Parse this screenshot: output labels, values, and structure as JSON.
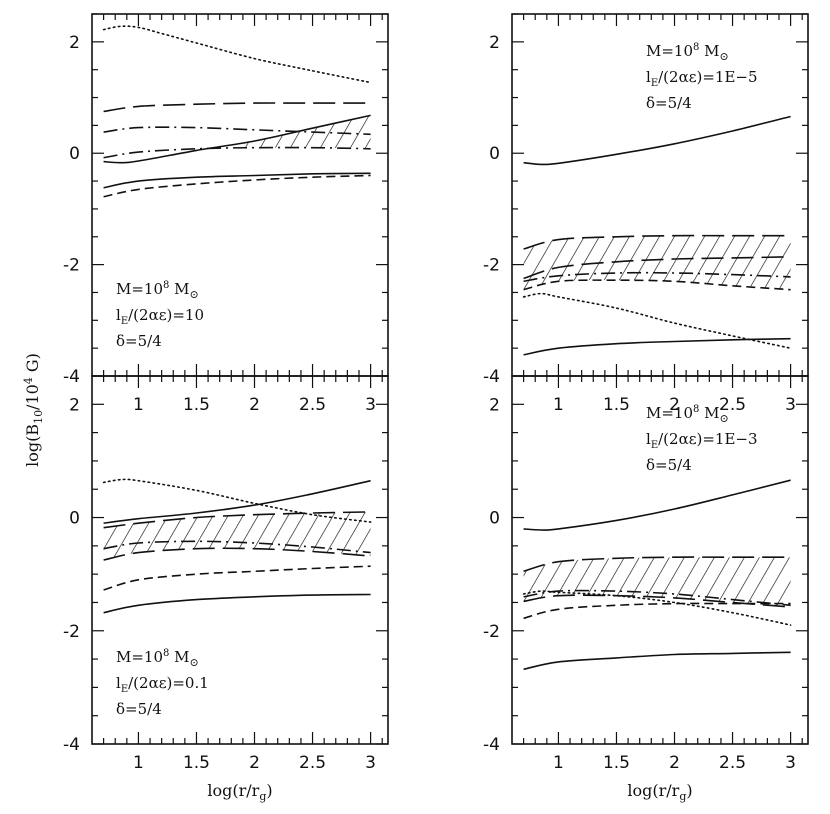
{
  "figure": {
    "ylabel_text": "log(B",
    "ylabel_sub": "10",
    "ylabel_tail": "/10",
    "ylabel_sup": "4",
    "ylabel_end": " G)",
    "xlabel_text": "log(r/r",
    "xlabel_sub": "g",
    "xlabel_end": ")"
  },
  "chart_data": [
    {
      "id": "panel-top-left",
      "type": "line",
      "xlim": [
        0.6,
        3.15
      ],
      "ylim": [
        -4,
        2.5
      ],
      "xticks": [],
      "xtick_labels": [],
      "yticks": [
        2,
        0,
        -2,
        -4
      ],
      "ytick_labels": [
        "2",
        "0",
        "-2",
        "-4"
      ],
      "annotation": [
        "M=10",
        "8",
        " M",
        "⊙",
        "l",
        "E",
        "/(2αε)=10",
        "δ=5/4"
      ],
      "annotation_position": "lower-left",
      "series": [
        {
          "name": "dotted",
          "style": "dotted",
          "x": [
            0.7,
            0.85,
            1.0,
            1.2,
            1.5,
            2.0,
            2.5,
            3.0
          ],
          "y": [
            2.22,
            2.28,
            2.26,
            2.15,
            1.98,
            1.7,
            1.48,
            1.27
          ]
        },
        {
          "name": "long-dash",
          "style": "longdash",
          "x": [
            0.7,
            1.0,
            1.5,
            2.0,
            2.5,
            3.0
          ],
          "y": [
            0.75,
            0.84,
            0.88,
            0.9,
            0.9,
            0.9
          ]
        },
        {
          "name": "dash-dot-upper",
          "style": "dashdot",
          "x": [
            0.7,
            1.0,
            1.5,
            2.0,
            2.5,
            3.0
          ],
          "y": [
            0.38,
            0.46,
            0.46,
            0.42,
            0.38,
            0.34
          ]
        },
        {
          "name": "dash-dot-lower",
          "style": "dashdot",
          "x": [
            0.7,
            1.0,
            1.5,
            2.0,
            2.5,
            3.0
          ],
          "y": [
            -0.08,
            0.02,
            0.08,
            0.1,
            0.1,
            0.08
          ]
        },
        {
          "name": "solid-rising",
          "style": "solid",
          "x": [
            0.7,
            0.85,
            1.0,
            1.5,
            2.0,
            2.5,
            3.0
          ],
          "y": [
            -0.15,
            -0.17,
            -0.14,
            0.05,
            0.22,
            0.45,
            0.68
          ]
        },
        {
          "name": "solid-low",
          "style": "solid",
          "x": [
            0.7,
            1.0,
            1.5,
            2.0,
            2.5,
            3.0
          ],
          "y": [
            -0.62,
            -0.5,
            -0.43,
            -0.4,
            -0.37,
            -0.36
          ]
        },
        {
          "name": "short-dash",
          "style": "shortdash",
          "x": [
            0.7,
            1.0,
            1.5,
            2.0,
            2.5,
            3.0
          ],
          "y": [
            -0.78,
            -0.65,
            -0.55,
            -0.48,
            -0.43,
            -0.4
          ]
        }
      ],
      "hatch": {
        "x": [
          1.85,
          2.0,
          2.5,
          3.0
        ],
        "upper": [
          0.18,
          0.22,
          0.45,
          0.68
        ],
        "lower": [
          0.12,
          0.1,
          0.1,
          0.08
        ]
      }
    },
    {
      "id": "panel-top-right",
      "type": "line",
      "xlim": [
        0.6,
        3.15
      ],
      "ylim": [
        -4,
        2.5
      ],
      "xticks": [],
      "xtick_labels": [],
      "yticks": [
        2,
        0,
        -2,
        -4
      ],
      "ytick_labels": [
        "2",
        "0",
        "-2",
        "-4"
      ],
      "annotation": [
        "M=10",
        "8",
        " M",
        "⊙",
        "l",
        "E",
        "/(2αε)=1E−5",
        "δ=5/4"
      ],
      "annotation_position": "upper-right",
      "series": [
        {
          "name": "solid-upper",
          "style": "solid",
          "x": [
            0.7,
            0.85,
            1.0,
            1.5,
            2.0,
            2.5,
            3.0
          ],
          "y": [
            -0.17,
            -0.2,
            -0.18,
            -0.02,
            0.17,
            0.4,
            0.66
          ]
        },
        {
          "name": "long-dash-top",
          "style": "longdash",
          "x": [
            0.7,
            1.0,
            1.5,
            2.0,
            2.5,
            3.0
          ],
          "y": [
            -1.72,
            -1.55,
            -1.5,
            -1.48,
            -1.48,
            -1.48
          ]
        },
        {
          "name": "long-dash-mid",
          "style": "longdash",
          "x": [
            0.7,
            1.0,
            1.5,
            2.0,
            2.5,
            3.0
          ],
          "y": [
            -2.25,
            -2.05,
            -1.95,
            -1.9,
            -1.88,
            -1.86
          ]
        },
        {
          "name": "dash-dot",
          "style": "dashdot",
          "x": [
            0.7,
            1.0,
            1.5,
            2.0,
            2.5,
            3.0
          ],
          "y": [
            -2.3,
            -2.2,
            -2.15,
            -2.15,
            -2.18,
            -2.22
          ]
        },
        {
          "name": "short-dash",
          "style": "shortdash",
          "x": [
            0.7,
            1.0,
            1.5,
            2.0,
            2.5,
            3.0
          ],
          "y": [
            -2.45,
            -2.3,
            -2.28,
            -2.3,
            -2.38,
            -2.45
          ]
        },
        {
          "name": "dotted",
          "style": "dotted",
          "x": [
            0.7,
            0.85,
            1.0,
            1.5,
            2.0,
            2.5,
            3.0
          ],
          "y": [
            -2.58,
            -2.52,
            -2.58,
            -2.78,
            -3.05,
            -3.28,
            -3.5
          ]
        },
        {
          "name": "solid-low",
          "style": "solid",
          "x": [
            0.7,
            1.0,
            1.5,
            2.0,
            2.5,
            3.0
          ],
          "y": [
            -3.62,
            -3.5,
            -3.42,
            -3.38,
            -3.35,
            -3.33
          ]
        }
      ],
      "hatch": {
        "x": [
          0.7,
          1.0,
          1.5,
          2.0,
          2.5,
          3.0
        ],
        "upper": [
          -1.72,
          -1.55,
          -1.5,
          -1.48,
          -1.48,
          -1.48
        ],
        "lower": [
          -2.45,
          -2.3,
          -2.28,
          -2.3,
          -2.38,
          -2.45
        ]
      }
    },
    {
      "id": "panel-bottom-left",
      "type": "line",
      "xlim": [
        0.6,
        3.15
      ],
      "ylim": [
        -4,
        2.5
      ],
      "xticks": [
        1,
        1.5,
        2,
        2.5,
        3
      ],
      "xtick_labels": [
        "1",
        "1.5",
        "2",
        "2.5",
        "3"
      ],
      "yticks": [
        2,
        0,
        -2,
        -4
      ],
      "ytick_labels": [
        "2",
        "0",
        "-2",
        "-4"
      ],
      "top_tick_labels": [
        "1",
        "1.5",
        "2",
        "2.5",
        "3"
      ],
      "annotation": [
        "M=10",
        "8",
        " M",
        "⊙",
        "l",
        "E",
        "/(2αε)=0.1",
        "δ=5/4"
      ],
      "annotation_position": "lower-left",
      "series": [
        {
          "name": "dotted",
          "style": "dotted",
          "x": [
            0.7,
            0.85,
            1.0,
            1.5,
            2.0,
            2.5,
            3.0
          ],
          "y": [
            0.62,
            0.67,
            0.65,
            0.48,
            0.25,
            0.05,
            -0.08
          ]
        },
        {
          "name": "solid-rising",
          "style": "solid",
          "x": [
            0.7,
            1.0,
            1.5,
            2.0,
            2.5,
            3.0
          ],
          "y": [
            -0.1,
            -0.02,
            0.08,
            0.22,
            0.42,
            0.65
          ]
        },
        {
          "name": "long-dash",
          "style": "longdash",
          "x": [
            0.7,
            1.0,
            1.5,
            2.0,
            2.5,
            3.0
          ],
          "y": [
            -0.18,
            -0.1,
            0.0,
            0.05,
            0.08,
            0.1
          ]
        },
        {
          "name": "dash-dot",
          "style": "dashdot",
          "x": [
            0.7,
            1.0,
            1.5,
            2.0,
            2.5,
            3.0
          ],
          "y": [
            -0.55,
            -0.45,
            -0.42,
            -0.45,
            -0.52,
            -0.62
          ]
        },
        {
          "name": "long-dash-lower",
          "style": "longdash",
          "x": [
            0.7,
            1.0,
            1.5,
            2.0,
            2.5,
            3.0
          ],
          "y": [
            -0.75,
            -0.62,
            -0.55,
            -0.55,
            -0.6,
            -0.68
          ]
        },
        {
          "name": "short-dash",
          "style": "shortdash",
          "x": [
            0.7,
            1.0,
            1.5,
            2.0,
            2.5,
            3.0
          ],
          "y": [
            -1.28,
            -1.1,
            -1.0,
            -0.95,
            -0.9,
            -0.86
          ]
        },
        {
          "name": "solid-low",
          "style": "solid",
          "x": [
            0.7,
            1.0,
            1.5,
            2.0,
            2.5,
            3.0
          ],
          "y": [
            -1.68,
            -1.55,
            -1.45,
            -1.4,
            -1.37,
            -1.36
          ]
        }
      ],
      "hatch": {
        "x": [
          0.7,
          1.0,
          1.5,
          2.0,
          2.5,
          3.0
        ],
        "upper": [
          -0.18,
          -0.1,
          0.0,
          0.05,
          0.08,
          0.1
        ],
        "lower": [
          -0.75,
          -0.62,
          -0.55,
          -0.55,
          -0.6,
          -0.68
        ]
      }
    },
    {
      "id": "panel-bottom-right",
      "type": "line",
      "xlim": [
        0.6,
        3.15
      ],
      "ylim": [
        -4,
        2.5
      ],
      "xticks": [
        1,
        1.5,
        2,
        2.5,
        3
      ],
      "xtick_labels": [
        "1",
        "1.5",
        "2",
        "2.5",
        "3"
      ],
      "yticks": [
        2,
        0,
        -2,
        -4
      ],
      "ytick_labels": [
        "2",
        "0",
        "-2",
        "-4"
      ],
      "top_tick_labels": [
        "1",
        "1.5",
        "2",
        "2.5",
        "3"
      ],
      "annotation": [
        "M=10",
        "8",
        " M",
        "⊙",
        "l",
        "E",
        "/(2αε)=1E−3",
        "δ=5/4"
      ],
      "annotation_position": "upper-right",
      "series": [
        {
          "name": "solid-upper",
          "style": "solid",
          "x": [
            0.7,
            0.85,
            1.0,
            1.5,
            2.0,
            2.5,
            3.0
          ],
          "y": [
            -0.2,
            -0.22,
            -0.2,
            -0.05,
            0.15,
            0.4,
            0.66
          ]
        },
        {
          "name": "long-dash-top",
          "style": "longdash",
          "x": [
            0.7,
            1.0,
            1.5,
            2.0,
            2.5,
            3.0
          ],
          "y": [
            -0.95,
            -0.78,
            -0.72,
            -0.7,
            -0.7,
            -0.7
          ]
        },
        {
          "name": "dash-dot",
          "style": "dashdot",
          "x": [
            0.7,
            1.0,
            1.5,
            2.0,
            2.5,
            3.0
          ],
          "y": [
            -1.4,
            -1.3,
            -1.3,
            -1.35,
            -1.45,
            -1.55
          ]
        },
        {
          "name": "long-dash-lower",
          "style": "longdash",
          "x": [
            0.7,
            1.0,
            1.5,
            2.0,
            2.5,
            3.0
          ],
          "y": [
            -1.48,
            -1.38,
            -1.38,
            -1.42,
            -1.5,
            -1.58
          ]
        },
        {
          "name": "dotted",
          "style": "dotted",
          "x": [
            0.7,
            0.85,
            1.0,
            1.5,
            2.0,
            2.5,
            3.0
          ],
          "y": [
            -1.35,
            -1.3,
            -1.32,
            -1.38,
            -1.5,
            -1.68,
            -1.9
          ]
        },
        {
          "name": "short-dash",
          "style": "shortdash",
          "x": [
            0.7,
            1.0,
            1.5,
            2.0,
            2.5,
            3.0
          ],
          "y": [
            -1.78,
            -1.62,
            -1.55,
            -1.52,
            -1.52,
            -1.52
          ]
        },
        {
          "name": "solid-low",
          "style": "solid",
          "x": [
            0.7,
            1.0,
            1.5,
            2.0,
            2.5,
            3.0
          ],
          "y": [
            -2.68,
            -2.55,
            -2.48,
            -2.42,
            -2.4,
            -2.38
          ]
        }
      ],
      "hatch": {
        "x": [
          0.7,
          1.0,
          1.5,
          2.0,
          2.5,
          3.0
        ],
        "upper": [
          -0.95,
          -0.78,
          -0.72,
          -0.7,
          -0.7,
          -0.7
        ],
        "lower": [
          -1.48,
          -1.38,
          -1.38,
          -1.42,
          -1.5,
          -1.58
        ]
      }
    }
  ]
}
